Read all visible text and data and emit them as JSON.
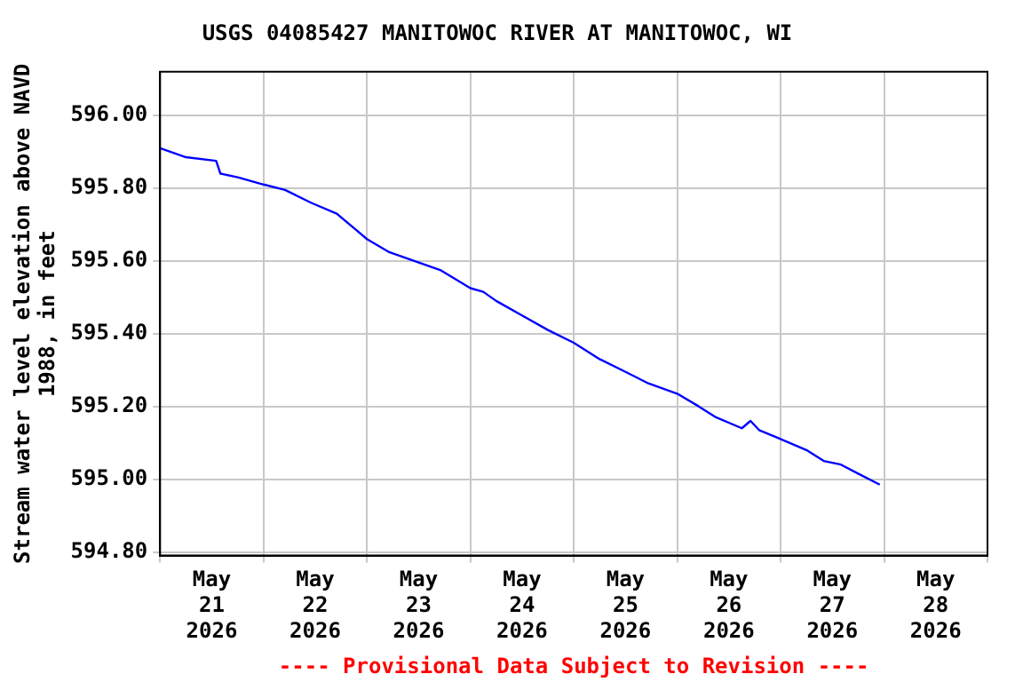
{
  "chart_data": {
    "type": "line",
    "title": "USGS 04085427 MANITOWOC RIVER AT MANITOWOC, WI",
    "ylabel": "Stream water level elevation above NAVD 1988, in feet",
    "annotations": [
      "---- Provisional Data Subject to Revision ----"
    ],
    "xlim": [
      "2026-05-21T00:00",
      "2026-05-29T00:00"
    ],
    "xticks": [
      {
        "value": "2026-05-21T00:00",
        "label": null
      },
      {
        "value": "2026-05-21T12:00",
        "label": "May 21 2026"
      },
      {
        "value": "2026-05-22T00:00",
        "label": null
      },
      {
        "value": "2026-05-22T12:00",
        "label": "May 22 2026"
      },
      {
        "value": "2026-05-23T00:00",
        "label": null
      },
      {
        "value": "2026-05-23T12:00",
        "label": "May 23 2026"
      },
      {
        "value": "2026-05-24T00:00",
        "label": null
      },
      {
        "value": "2026-05-24T12:00",
        "label": "May 24 2026"
      },
      {
        "value": "2026-05-25T00:00",
        "label": null
      },
      {
        "value": "2026-05-25T12:00",
        "label": "May 25 2026"
      },
      {
        "value": "2026-05-26T00:00",
        "label": null
      },
      {
        "value": "2026-05-26T12:00",
        "label": "May 26 2026"
      },
      {
        "value": "2026-05-27T00:00",
        "label": null
      },
      {
        "value": "2026-05-27T12:00",
        "label": "May 27 2026"
      },
      {
        "value": "2026-05-28T00:00",
        "label": null
      },
      {
        "value": "2026-05-28T12:00",
        "label": "May 28 2026"
      },
      {
        "value": "2026-05-29T00:00",
        "label": null
      }
    ],
    "ylim": [
      594.79,
      596.12
    ],
    "yticks": [
      {
        "value": 594.8,
        "label": "594.80"
      },
      {
        "value": 595.0,
        "label": "595.00"
      },
      {
        "value": 595.2,
        "label": "595.20"
      },
      {
        "value": 595.4,
        "label": "595.40"
      },
      {
        "value": 595.6,
        "label": "595.60"
      },
      {
        "value": 595.8,
        "label": "595.80"
      },
      {
        "value": 596.0,
        "label": "596.00"
      }
    ],
    "grid": true,
    "legend": false,
    "marker": "none",
    "line_style": "solid",
    "series": [
      {
        "color": "#0000ff",
        "x": [
          "2026-05-21T00:00",
          "2026-05-21T06:00",
          "2026-05-21T13:00",
          "2026-05-21T14:00",
          "2026-05-21T18:00",
          "2026-05-22T00:00",
          "2026-05-22T05:00",
          "2026-05-22T11:00",
          "2026-05-22T17:00",
          "2026-05-22T21:00",
          "2026-05-23T00:00",
          "2026-05-23T05:00",
          "2026-05-23T11:00",
          "2026-05-23T17:00",
          "2026-05-24T00:00",
          "2026-05-24T03:00",
          "2026-05-24T06:00",
          "2026-05-24T12:00",
          "2026-05-24T18:00",
          "2026-05-25T00:00",
          "2026-05-25T06:00",
          "2026-05-25T12:00",
          "2026-05-25T17:00",
          "2026-05-26T00:00",
          "2026-05-26T05:00",
          "2026-05-26T09:00",
          "2026-05-26T15:00",
          "2026-05-26T17:00",
          "2026-05-26T19:00",
          "2026-05-26T23:00",
          "2026-05-27T06:00",
          "2026-05-27T10:00",
          "2026-05-27T14:00",
          "2026-05-27T18:00",
          "2026-05-27T23:00"
        ],
        "values": [
          595.91,
          595.885,
          595.875,
          595.84,
          595.83,
          595.81,
          595.795,
          595.76,
          595.73,
          595.69,
          595.66,
          595.625,
          595.6,
          595.575,
          595.525,
          595.515,
          595.49,
          595.45,
          595.41,
          595.375,
          595.33,
          595.295,
          595.265,
          595.235,
          595.2,
          595.17,
          595.14,
          595.16,
          595.135,
          595.115,
          595.08,
          595.05,
          595.04,
          595.015,
          594.985
        ]
      }
    ]
  }
}
